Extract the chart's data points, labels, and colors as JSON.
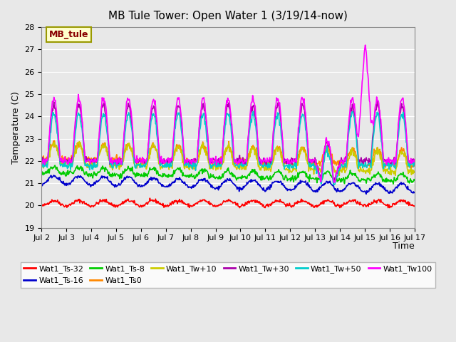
{
  "title": "MB Tule Tower: Open Water 1 (3/19/14-now)",
  "xlabel": "Time",
  "ylabel": "Temperature (C)",
  "ylim": [
    19.0,
    28.0
  ],
  "yticks": [
    19.0,
    20.0,
    21.0,
    22.0,
    23.0,
    24.0,
    25.0,
    26.0,
    27.0,
    28.0
  ],
  "xtick_labels": [
    "Jul 2",
    "Jul 3",
    "Jul 4",
    "Jul 5",
    "Jul 6",
    "Jul 7",
    "Jul 8",
    "Jul 9",
    "Jul 10",
    "Jul 11",
    "Jul 12",
    "Jul 13",
    "Jul 14",
    "Jul 15",
    "Jul 16",
    "Jul 17"
  ],
  "background_color": "#e8e8e8",
  "inset_label": "MB_tule",
  "series": [
    {
      "name": "Wat1_Ts-32",
      "color": "#ff0000",
      "lw": 1.2
    },
    {
      "name": "Wat1_Ts-16",
      "color": "#0000cc",
      "lw": 1.2
    },
    {
      "name": "Wat1_Ts-8",
      "color": "#00cc00",
      "lw": 1.2
    },
    {
      "name": "Wat1_Ts0",
      "color": "#ff8800",
      "lw": 1.2
    },
    {
      "name": "Wat1_Tw+10",
      "color": "#cccc00",
      "lw": 1.2
    },
    {
      "name": "Wat1_Tw+30",
      "color": "#aa00aa",
      "lw": 1.2
    },
    {
      "name": "Wat1_Tw+50",
      "color": "#00cccc",
      "lw": 1.2
    },
    {
      "name": "Wat1_Tw100",
      "color": "#ff00ff",
      "lw": 1.2
    }
  ]
}
